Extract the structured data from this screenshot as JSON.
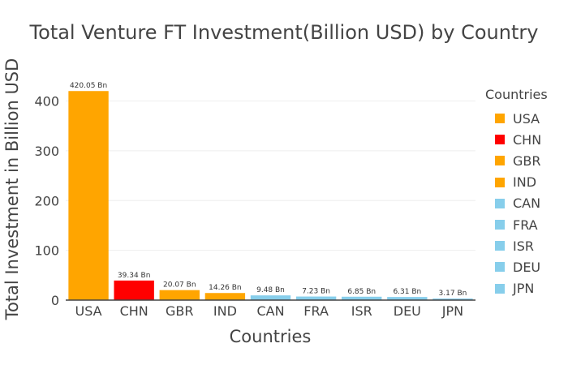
{
  "chart_data": {
    "type": "bar",
    "title": "Total Venture FT Investment(Billion USD) by Country",
    "xlabel": "Countries",
    "ylabel": "Total Investment in Billion USD",
    "categories": [
      "USA",
      "CHN",
      "GBR",
      "IND",
      "CAN",
      "FRA",
      "ISR",
      "DEU",
      "JPN"
    ],
    "values": [
      420.05,
      39.34,
      20.07,
      14.26,
      9.48,
      7.23,
      6.85,
      6.31,
      3.17
    ],
    "data_labels": [
      "420.05 Bn",
      "39.34 Bn",
      "20.07 Bn",
      "14.26 Bn",
      "9.48 Bn",
      "7.23 Bn",
      "6.85 Bn",
      "6.31 Bn",
      "3.17 Bn"
    ],
    "colors": [
      "#FFA500",
      "#FF0000",
      "#FFA500",
      "#FFA500",
      "#87CEEB",
      "#87CEEB",
      "#87CEEB",
      "#87CEEB",
      "#87CEEB"
    ],
    "ylim": [
      0,
      440
    ],
    "yticks": [
      0,
      100,
      200,
      300,
      400
    ],
    "grid": true,
    "legend": {
      "title": "Countries",
      "position": "right",
      "items": [
        {
          "label": "USA",
          "color": "#FFA500"
        },
        {
          "label": "CHN",
          "color": "#FF0000"
        },
        {
          "label": "GBR",
          "color": "#FFA500"
        },
        {
          "label": "IND",
          "color": "#FFA500"
        },
        {
          "label": "CAN",
          "color": "#87CEEB"
        },
        {
          "label": "FRA",
          "color": "#87CEEB"
        },
        {
          "label": "ISR",
          "color": "#87CEEB"
        },
        {
          "label": "DEU",
          "color": "#87CEEB"
        },
        {
          "label": "JPN",
          "color": "#87CEEB"
        }
      ]
    }
  }
}
